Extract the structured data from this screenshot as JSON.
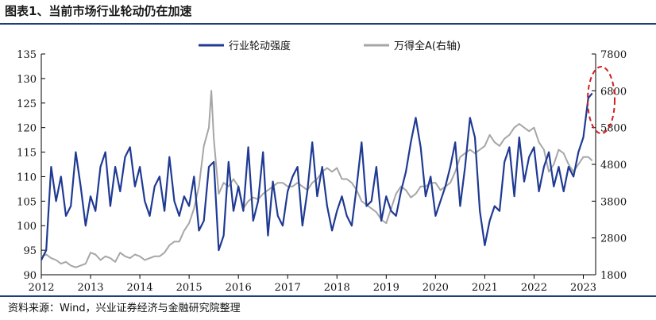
{
  "title": "图表1、当前市场行业轮动仍在加速",
  "source": "资料来源：Wind，兴业证券经济与金融研究院整理",
  "chart_data": {
    "type": "line",
    "x_ticks": [
      "2012",
      "2013",
      "2014",
      "2015",
      "2016",
      "2017",
      "2018",
      "2019",
      "2020",
      "2021",
      "2022",
      "2023"
    ],
    "y_left": {
      "ylim": [
        90,
        135
      ],
      "ticks": [
        "90",
        "95",
        "100",
        "105",
        "110",
        "115",
        "120",
        "125",
        "130",
        "135"
      ]
    },
    "y_right": {
      "ylim": [
        1800,
        7800
      ],
      "ticks": [
        "1800",
        "2800",
        "3800",
        "4800",
        "5800",
        "6800",
        "7800"
      ]
    },
    "grid": false,
    "legend_position": "top-center",
    "annotation": "red dashed ellipse around the latest values (early 2023)",
    "series": [
      {
        "name": "行业轮动强度",
        "axis": "left",
        "color": "#1f3a93",
        "x": [
          2012.0,
          2012.1,
          2012.2,
          2012.3,
          2012.4,
          2012.5,
          2012.6,
          2012.7,
          2012.8,
          2012.9,
          2013.0,
          2013.1,
          2013.2,
          2013.3,
          2013.4,
          2013.5,
          2013.6,
          2013.7,
          2013.8,
          2013.9,
          2014.0,
          2014.1,
          2014.2,
          2014.3,
          2014.4,
          2014.5,
          2014.6,
          2014.7,
          2014.8,
          2014.9,
          2015.0,
          2015.1,
          2015.2,
          2015.3,
          2015.4,
          2015.5,
          2015.6,
          2015.7,
          2015.8,
          2015.9,
          2016.0,
          2016.1,
          2016.2,
          2016.3,
          2016.4,
          2016.5,
          2016.6,
          2016.7,
          2016.8,
          2016.9,
          2017.0,
          2017.1,
          2017.2,
          2017.3,
          2017.4,
          2017.5,
          2017.6,
          2017.7,
          2017.8,
          2017.9,
          2018.0,
          2018.1,
          2018.2,
          2018.3,
          2018.4,
          2018.5,
          2018.6,
          2018.7,
          2018.8,
          2018.9,
          2019.0,
          2019.1,
          2019.2,
          2019.3,
          2019.4,
          2019.5,
          2019.6,
          2019.7,
          2019.8,
          2019.9,
          2020.0,
          2020.1,
          2020.2,
          2020.3,
          2020.4,
          2020.5,
          2020.6,
          2020.7,
          2020.8,
          2020.9,
          2021.0,
          2021.1,
          2021.2,
          2021.3,
          2021.4,
          2021.5,
          2021.6,
          2021.7,
          2021.8,
          2021.9,
          2022.0,
          2022.1,
          2022.2,
          2022.3,
          2022.4,
          2022.5,
          2022.6,
          2022.7,
          2022.8,
          2022.9,
          2023.0,
          2023.1,
          2023.18
        ],
        "values": [
          93,
          95,
          112,
          105,
          110,
          102,
          104,
          115,
          108,
          100,
          106,
          103,
          112,
          115,
          104,
          112,
          107,
          114,
          116,
          108,
          112,
          105,
          102,
          108,
          110,
          103,
          114,
          105,
          102,
          106,
          104,
          110,
          99,
          101,
          112,
          113,
          95,
          98,
          113,
          103,
          108,
          103,
          116,
          101,
          105,
          115,
          98,
          109,
          102,
          100,
          107,
          110,
          112,
          100,
          107,
          117,
          106,
          112,
          104,
          99,
          103,
          106,
          102,
          100,
          108,
          117,
          104,
          105,
          112,
          101,
          106,
          103,
          102,
          107,
          111,
          117,
          122,
          116,
          106,
          110,
          102,
          105,
          108,
          112,
          117,
          104,
          112,
          122,
          118,
          103,
          96,
          101,
          104,
          103,
          113,
          116,
          106,
          118,
          109,
          114,
          116,
          107,
          112,
          115,
          108,
          112,
          107,
          112,
          110,
          115,
          118,
          126,
          127
        ]
      },
      {
        "name": "万得全A(右轴)",
        "axis": "right",
        "color": "#a6a6a6",
        "x": [
          2012.0,
          2012.1,
          2012.2,
          2012.3,
          2012.4,
          2012.5,
          2012.6,
          2012.7,
          2012.8,
          2012.9,
          2013.0,
          2013.1,
          2013.2,
          2013.3,
          2013.4,
          2013.5,
          2013.6,
          2013.7,
          2013.8,
          2013.9,
          2014.0,
          2014.1,
          2014.2,
          2014.3,
          2014.4,
          2014.5,
          2014.6,
          2014.7,
          2014.8,
          2014.9,
          2015.0,
          2015.1,
          2015.2,
          2015.3,
          2015.4,
          2015.45,
          2015.5,
          2015.6,
          2015.7,
          2015.8,
          2015.9,
          2016.0,
          2016.1,
          2016.2,
          2016.3,
          2016.4,
          2016.5,
          2016.6,
          2016.7,
          2016.8,
          2016.9,
          2017.0,
          2017.1,
          2017.2,
          2017.3,
          2017.4,
          2017.5,
          2017.6,
          2017.7,
          2017.8,
          2017.9,
          2018.0,
          2018.1,
          2018.2,
          2018.3,
          2018.4,
          2018.5,
          2018.6,
          2018.7,
          2018.8,
          2018.9,
          2019.0,
          2019.1,
          2019.2,
          2019.3,
          2019.4,
          2019.5,
          2019.6,
          2019.7,
          2019.8,
          2019.9,
          2020.0,
          2020.1,
          2020.2,
          2020.3,
          2020.4,
          2020.5,
          2020.6,
          2020.7,
          2020.8,
          2020.9,
          2021.0,
          2021.1,
          2021.2,
          2021.3,
          2021.4,
          2021.5,
          2021.6,
          2021.7,
          2021.8,
          2021.9,
          2022.0,
          2022.1,
          2022.2,
          2022.3,
          2022.4,
          2022.5,
          2022.6,
          2022.7,
          2022.8,
          2022.9,
          2023.0,
          2023.1,
          2023.18
        ],
        "values": [
          2300,
          2350,
          2250,
          2200,
          2100,
          2150,
          2050,
          2000,
          2050,
          2100,
          2400,
          2350,
          2200,
          2300,
          2250,
          2150,
          2400,
          2300,
          2250,
          2350,
          2300,
          2200,
          2250,
          2300,
          2300,
          2400,
          2600,
          2700,
          2700,
          3000,
          3200,
          3600,
          4200,
          5300,
          5800,
          6800,
          5500,
          4000,
          4300,
          4200,
          4400,
          4200,
          3600,
          3800,
          3900,
          3850,
          4000,
          4100,
          4200,
          4300,
          4300,
          4200,
          4200,
          4300,
          4200,
          4100,
          4300,
          4400,
          4600,
          4700,
          4600,
          4700,
          4400,
          4400,
          4300,
          4100,
          3800,
          3700,
          3600,
          3500,
          3300,
          3200,
          3600,
          4000,
          4200,
          4100,
          3900,
          4000,
          4200,
          4200,
          4300,
          4300,
          4100,
          4200,
          4300,
          4600,
          5000,
          5100,
          5200,
          5100,
          5200,
          5300,
          5600,
          5400,
          5300,
          5500,
          5600,
          5800,
          5900,
          5800,
          5700,
          5800,
          5400,
          5200,
          4600,
          4800,
          5200,
          5100,
          4800,
          4600,
          4800,
          5000,
          5000,
          4900
        ]
      }
    ]
  }
}
